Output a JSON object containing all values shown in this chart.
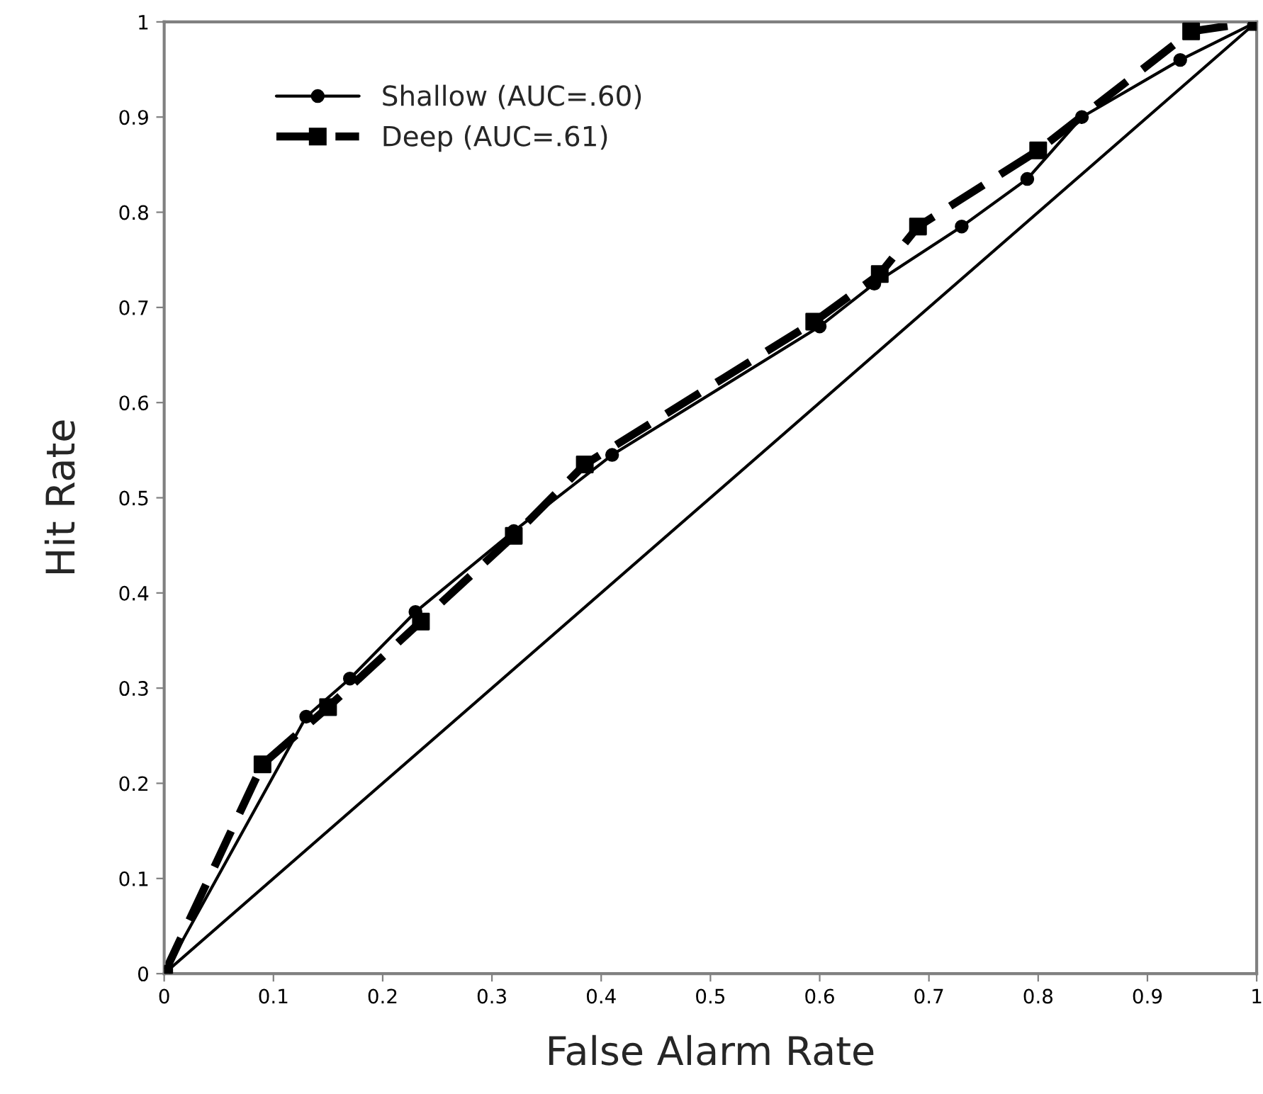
{
  "chart_data": {
    "type": "line",
    "xlabel": "False Alarm Rate",
    "ylabel": "Hit Rate",
    "xlim": [
      0,
      1
    ],
    "ylim": [
      0,
      1
    ],
    "xticks": [
      0,
      0.1,
      0.2,
      0.3,
      0.4,
      0.5,
      0.6,
      0.7,
      0.8,
      0.9,
      1
    ],
    "yticks": [
      0,
      0.1,
      0.2,
      0.3,
      0.4,
      0.5,
      0.6,
      0.7,
      0.8,
      0.9,
      1
    ],
    "grid": false,
    "legend": "top left",
    "series": [
      {
        "name": "Shallow (AUC=.60)",
        "color": "#000000",
        "marker": "circle",
        "line_style": "solid",
        "x": [
          0,
          0.13,
          0.17,
          0.23,
          0.32,
          0.41,
          0.6,
          0.65,
          0.73,
          0.79,
          0.84,
          0.93,
          1
        ],
        "values": [
          0,
          0.27,
          0.31,
          0.38,
          0.465,
          0.545,
          0.68,
          0.725,
          0.785,
          0.835,
          0.9,
          0.96,
          1
        ]
      },
      {
        "name": "Deep (AUC=.61)",
        "color": "#000000",
        "marker": "square",
        "line_style": "dashed",
        "x": [
          0,
          0.09,
          0.15,
          0.235,
          0.32,
          0.385,
          0.595,
          0.655,
          0.69,
          0.8,
          0.94,
          1
        ],
        "values": [
          0,
          0.22,
          0.28,
          0.37,
          0.46,
          0.535,
          0.685,
          0.735,
          0.785,
          0.865,
          0.99,
          1
        ]
      },
      {
        "color": "#000000",
        "marker": "none",
        "line_style": "solid",
        "x": [
          0,
          1
        ],
        "values": [
          0,
          1
        ]
      }
    ]
  }
}
